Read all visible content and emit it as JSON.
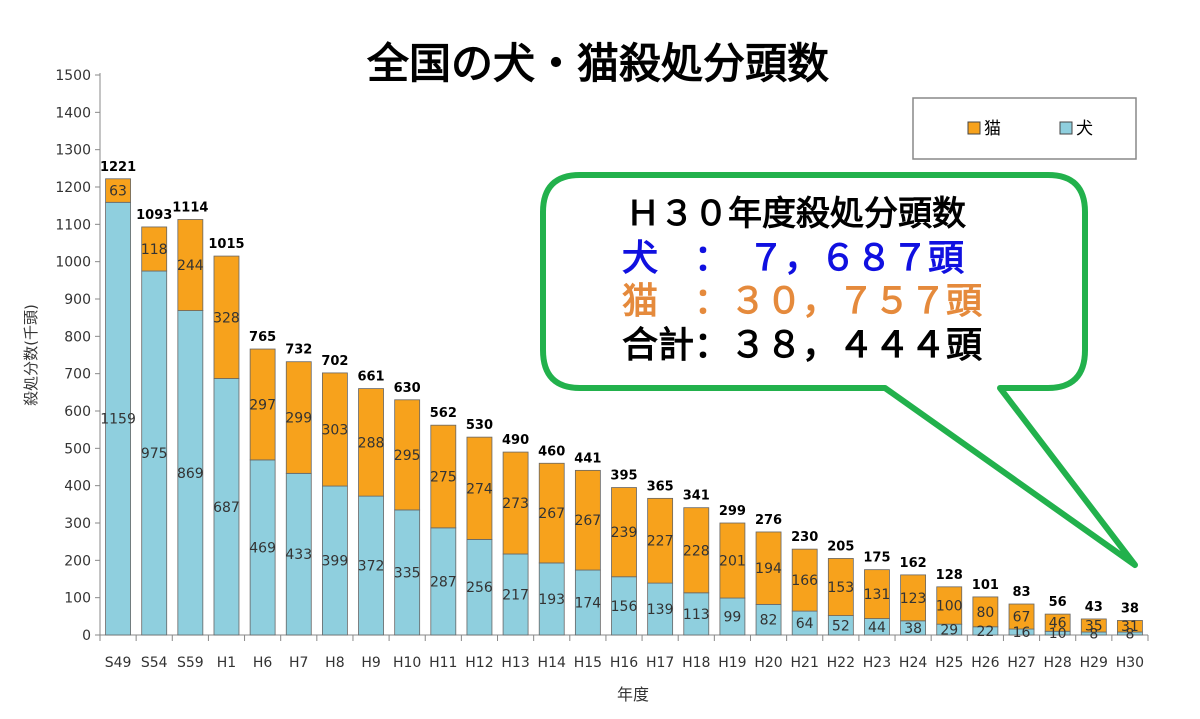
{
  "chart_data": {
    "type": "bar",
    "stacked": true,
    "title": "全国の犬・猫殺処分頭数",
    "xlabel": "年度",
    "ylabel": "殺処分数(千頭)",
    "ylim": [
      0,
      1500
    ],
    "ytick_step": 100,
    "grid": false,
    "legend_position": "top-right",
    "categories": [
      "S49",
      "S54",
      "S59",
      "H1",
      "H6",
      "H7",
      "H8",
      "H9",
      "H10",
      "H11",
      "H12",
      "H13",
      "H14",
      "H15",
      "H16",
      "H17",
      "H18",
      "H19",
      "H20",
      "H21",
      "H22",
      "H23",
      "H24",
      "H25",
      "H26",
      "H27",
      "H28",
      "H29",
      "H30"
    ],
    "series": [
      {
        "name": "犬",
        "color": "#8fcfde",
        "values": [
          1159,
          975,
          869,
          687,
          469,
          433,
          399,
          372,
          335,
          287,
          256,
          217,
          193,
          174,
          156,
          139,
          113,
          99,
          82,
          64,
          52,
          44,
          38,
          29,
          22,
          16,
          10,
          8,
          8
        ]
      },
      {
        "name": "猫",
        "color": "#f7a21c",
        "values": [
          63,
          118,
          244,
          328,
          297,
          299,
          303,
          288,
          295,
          275,
          274,
          273,
          267,
          267,
          239,
          227,
          228,
          201,
          194,
          166,
          153,
          131,
          123,
          100,
          80,
          67,
          46,
          35,
          31
        ]
      }
    ],
    "totals": [
      1221,
      1093,
      1114,
      1015,
      765,
      732,
      702,
      661,
      630,
      562,
      530,
      490,
      460,
      441,
      395,
      365,
      341,
      299,
      276,
      230,
      205,
      175,
      162,
      128,
      101,
      83,
      56,
      43,
      38
    ]
  },
  "callout": {
    "heading": "Ｈ３０年度殺処分頭数",
    "dog_line": "犬　：　７，６８７頭",
    "cat_line": "猫　：３０，７５７頭",
    "total_line": "合計：３８，４４４頭",
    "border_color": "#22b14c",
    "dog_color": "#1010e0",
    "cat_color": "#e58a3c"
  }
}
